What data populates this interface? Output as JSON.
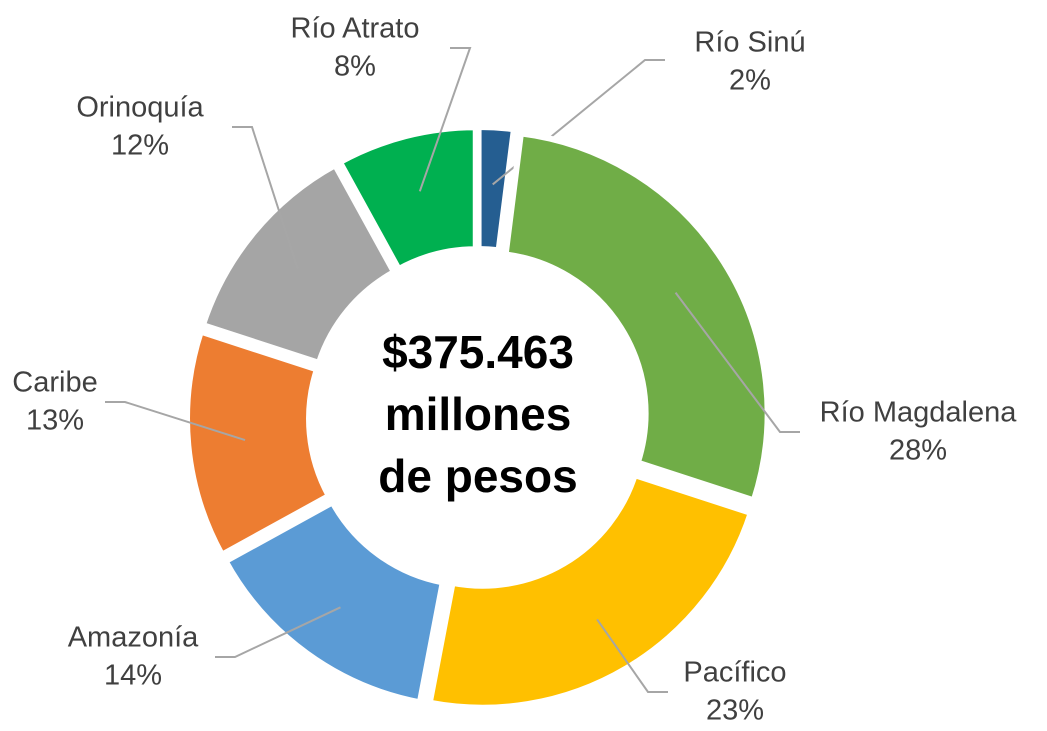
{
  "chart_data": {
    "type": "donut",
    "categories": [
      "Río Sinú",
      "Río Magdalena",
      "Pacífico",
      "Amazonía",
      "Caribe",
      "Orinoquía",
      "Río Atrato"
    ],
    "values": [
      2,
      28,
      23,
      14,
      13,
      12,
      8
    ],
    "value_labels": [
      "2%",
      "28%",
      "23%",
      "14%",
      "13%",
      "12%",
      "8%"
    ],
    "colors": [
      "#255e91",
      "#70ad47",
      "#ffc000",
      "#5b9bd5",
      "#ed7d31",
      "#a5a5a5",
      "#00b050"
    ],
    "annotation": [
      "$375.463",
      "millones",
      "de pesos"
    ]
  }
}
